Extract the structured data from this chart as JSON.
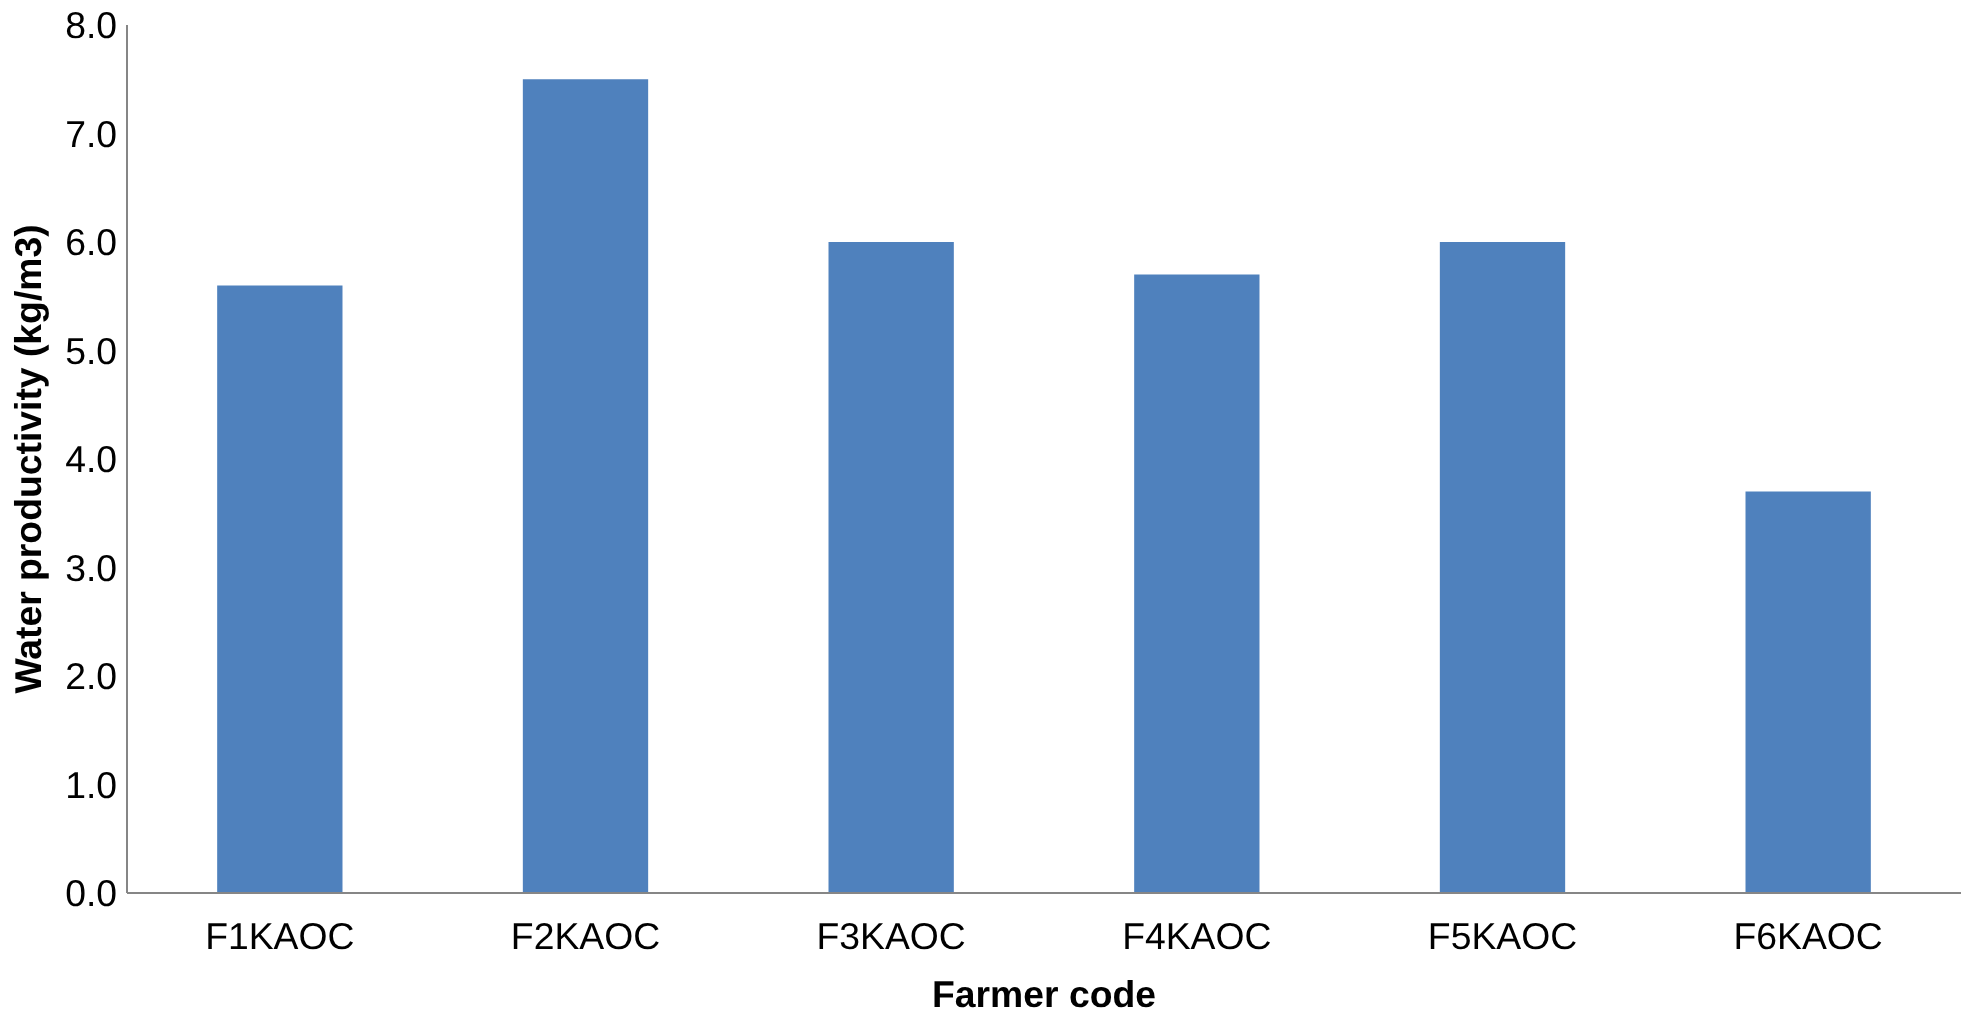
{
  "chart_data": {
    "type": "bar",
    "xlabel": "Farmer code",
    "ylabel": "Water productivity (kg/m3)",
    "categories": [
      "F1KAOC",
      "F2KAOC",
      "F3KAOC",
      "F4KAOC",
      "F5KAOC",
      "F6KAOC"
    ],
    "values": [
      5.6,
      7.5,
      6.0,
      5.7,
      6.0,
      3.7
    ],
    "color": "#4f81bd",
    "ylim": [
      0,
      8
    ],
    "yticks": [
      {
        "value": 0,
        "label": "0.0"
      },
      {
        "value": 1,
        "label": "1.0"
      },
      {
        "value": 2,
        "label": "2.0"
      },
      {
        "value": 3,
        "label": "3.0"
      },
      {
        "value": 4,
        "label": "4.0"
      },
      {
        "value": 5,
        "label": "5.0"
      },
      {
        "value": 6,
        "label": "6.0"
      },
      {
        "value": 7,
        "label": "7.0"
      },
      {
        "value": 8,
        "label": "8.0"
      }
    ],
    "grid": false
  }
}
